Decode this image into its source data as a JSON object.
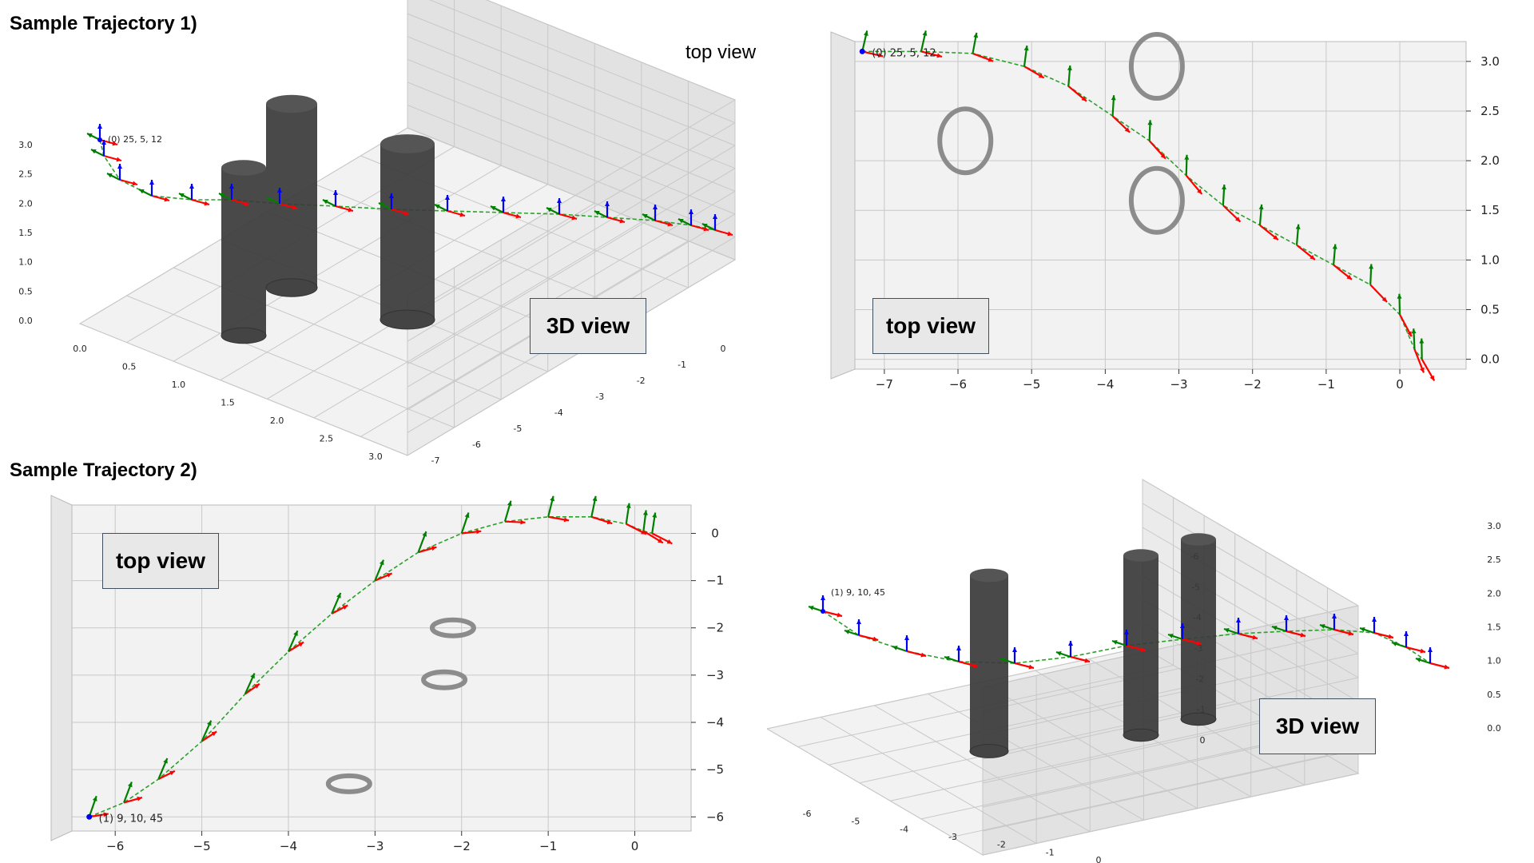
{
  "titles": {
    "traj1": "Sample Trajectory 1)",
    "traj2": "Sample Trajectory 2)"
  },
  "labels": {
    "top_view_plain": "top view",
    "view_3d": "3D view",
    "view_top": "top view"
  },
  "colors": {
    "pane": "#f2f2f2",
    "grid": "#c8c8c8",
    "path": "#2ca02c",
    "x_axis": "#ff0000",
    "y_axis": "#008000",
    "z_axis": "#0000ff",
    "obstacle": "#3a3a3a",
    "ring": "#8c8c8c"
  },
  "chart_data": [
    {
      "id": "traj1_3d",
      "type": "scatter",
      "view": "3D",
      "title": "",
      "annotation": "(0) 25, 5, 12",
      "xticks": [
        "-7",
        "-6",
        "-5",
        "-4",
        "-3",
        "-2",
        "-1",
        "0"
      ],
      "yticks": [
        "0.0",
        "0.5",
        "1.0",
        "1.5",
        "2.0",
        "2.5",
        "3.0"
      ],
      "zticks": [
        "0.0",
        "0.5",
        "1.0",
        "1.5",
        "2.0",
        "2.5",
        "3.0"
      ],
      "obstacles": [
        "cylinder",
        "cylinder",
        "cylinder"
      ]
    },
    {
      "id": "traj1_top",
      "type": "line",
      "view": "top",
      "title": "",
      "annotation": "(0) 25, 5, 12",
      "xticks": [
        "-7",
        "-6",
        "-5",
        "-4",
        "-3",
        "-2",
        "-1",
        "0"
      ],
      "yticks": [
        "0.0",
        "0.5",
        "1.0",
        "1.5",
        "2.0",
        "2.5",
        "3.0"
      ],
      "xlim": [
        -7.4,
        0.9
      ],
      "ylim": [
        -0.1,
        3.2
      ],
      "path": [
        [
          -7.3,
          3.1
        ],
        [
          -6.5,
          3.1
        ],
        [
          -5.8,
          3.08
        ],
        [
          -5.1,
          2.95
        ],
        [
          -4.5,
          2.75
        ],
        [
          -3.9,
          2.45
        ],
        [
          -3.4,
          2.2
        ],
        [
          -2.9,
          1.85
        ],
        [
          -2.4,
          1.55
        ],
        [
          -1.9,
          1.35
        ],
        [
          -1.4,
          1.15
        ],
        [
          -0.9,
          0.95
        ],
        [
          -0.4,
          0.75
        ],
        [
          0.0,
          0.45
        ],
        [
          0.2,
          0.1
        ],
        [
          0.3,
          0.0
        ]
      ],
      "rings": [
        [
          -5.9,
          2.2
        ],
        [
          -3.3,
          2.95
        ],
        [
          -3.3,
          1.6
        ]
      ]
    },
    {
      "id": "traj2_top",
      "type": "line",
      "view": "top",
      "title": "",
      "annotation": "(1) 9, 10, 45",
      "xticks": [
        "-6",
        "-5",
        "-4",
        "-3",
        "-2",
        "-1",
        "0"
      ],
      "yticks": [
        "0",
        "-1",
        "-2",
        "-3",
        "-4",
        "-5",
        "-6"
      ],
      "xlim": [
        -6.5,
        0.65
      ],
      "ylim": [
        -6.3,
        0.6
      ],
      "path": [
        [
          -6.3,
          -6.0
        ],
        [
          -5.9,
          -5.7
        ],
        [
          -5.5,
          -5.2
        ],
        [
          -5.0,
          -4.4
        ],
        [
          -4.5,
          -3.4
        ],
        [
          -4.0,
          -2.5
        ],
        [
          -3.5,
          -1.7
        ],
        [
          -3.0,
          -1.0
        ],
        [
          -2.5,
          -0.4
        ],
        [
          -2.0,
          0.0
        ],
        [
          -1.5,
          0.25
        ],
        [
          -1.0,
          0.35
        ],
        [
          -0.5,
          0.35
        ],
        [
          -0.1,
          0.2
        ],
        [
          0.1,
          0.05
        ],
        [
          0.2,
          0.0
        ]
      ],
      "rings": [
        [
          -2.1,
          -2.0
        ],
        [
          -2.2,
          -3.1
        ],
        [
          -3.3,
          -5.3
        ]
      ]
    },
    {
      "id": "traj2_3d",
      "type": "scatter",
      "view": "3D",
      "title": "",
      "annotation": "(1) 9, 10, 45",
      "xticks": [
        "-6",
        "-5",
        "-4",
        "-3",
        "-2",
        "-1",
        "0"
      ],
      "yticks": [
        "0",
        "-1",
        "-2",
        "-3",
        "-4",
        "-5",
        "-6"
      ],
      "zticks": [
        "0.0",
        "0.5",
        "1.0",
        "1.5",
        "2.0",
        "2.5",
        "3.0"
      ],
      "obstacles": [
        "cylinder",
        "cylinder",
        "cylinder"
      ]
    }
  ]
}
